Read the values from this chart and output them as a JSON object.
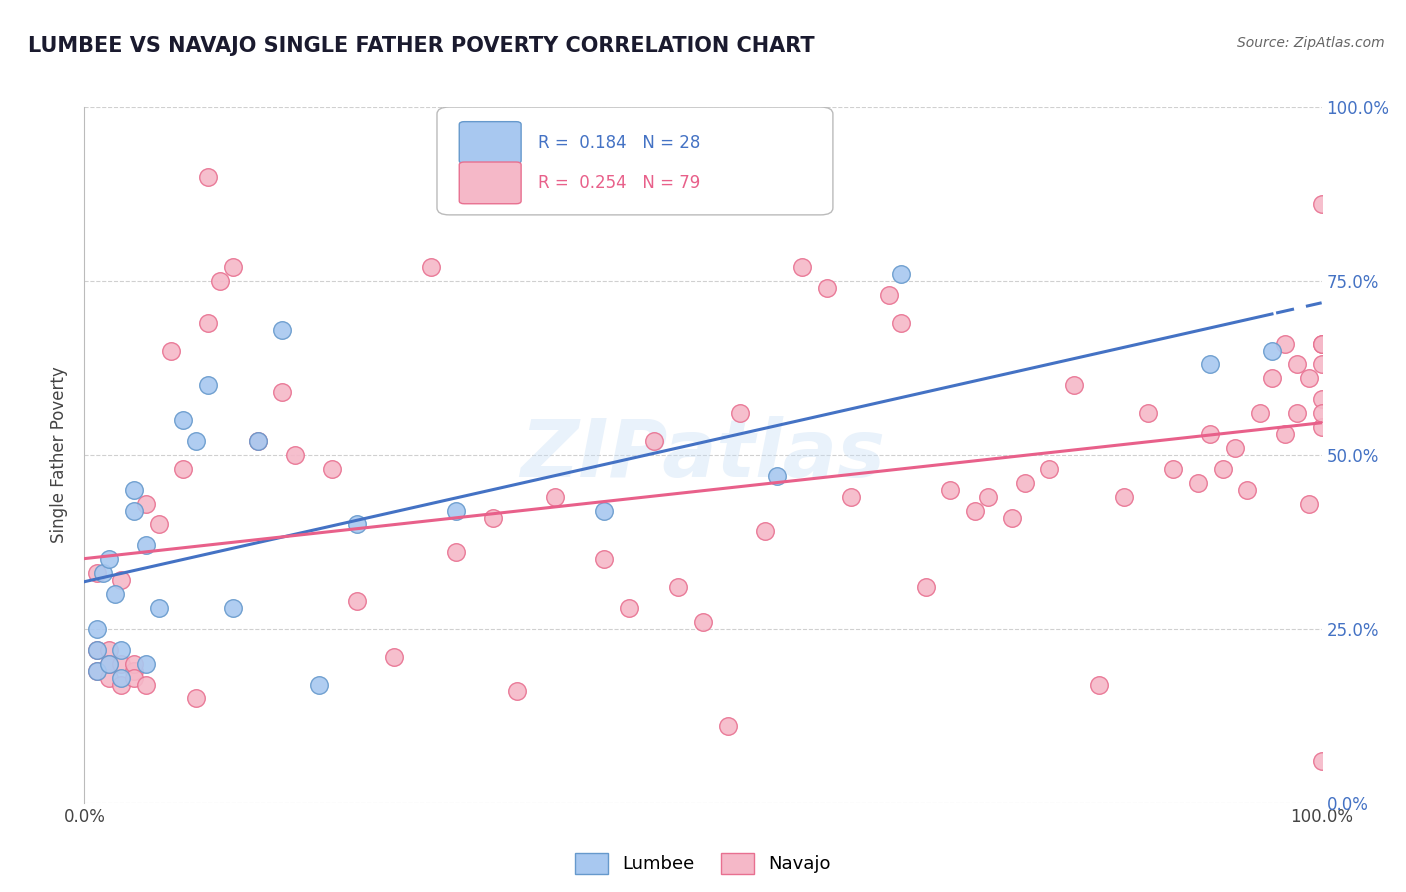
{
  "title": "LUMBEE VS NAVAJO SINGLE FATHER POVERTY CORRELATION CHART",
  "source_text": "Source: ZipAtlas.com",
  "ylabel": "Single Father Poverty",
  "xlim": [
    0,
    1
  ],
  "ylim": [
    0,
    1
  ],
  "y_tick_positions": [
    0.0,
    0.25,
    0.5,
    0.75,
    1.0
  ],
  "y_tick_labels": [
    "0.0%",
    "25.0%",
    "50.0%",
    "75.0%",
    "100.0%"
  ],
  "grid_color": "#d0d0d0",
  "background_color": "#ffffff",
  "watermark": "ZIPatlas",
  "lumbee_color": "#a8c8f0",
  "lumbee_edge_color": "#6699CC",
  "navajo_color": "#f5b8c8",
  "navajo_edge_color": "#E87090",
  "lumbee_R": 0.184,
  "lumbee_N": 28,
  "navajo_R": 0.254,
  "navajo_N": 79,
  "lumbee_line_color": "#4472C4",
  "navajo_line_color": "#E8608A",
  "lumbee_scatter_x": [
    0.01,
    0.01,
    0.01,
    0.015,
    0.02,
    0.02,
    0.025,
    0.03,
    0.03,
    0.04,
    0.04,
    0.05,
    0.05,
    0.06,
    0.08,
    0.09,
    0.1,
    0.12,
    0.14,
    0.16,
    0.19,
    0.22,
    0.3,
    0.42,
    0.56,
    0.66,
    0.91,
    0.96
  ],
  "lumbee_scatter_y": [
    0.19,
    0.22,
    0.25,
    0.33,
    0.35,
    0.2,
    0.3,
    0.18,
    0.22,
    0.42,
    0.45,
    0.2,
    0.37,
    0.28,
    0.55,
    0.52,
    0.6,
    0.28,
    0.52,
    0.68,
    0.17,
    0.4,
    0.42,
    0.42,
    0.47,
    0.76,
    0.63,
    0.65
  ],
  "navajo_scatter_x": [
    0.01,
    0.01,
    0.01,
    0.02,
    0.02,
    0.02,
    0.03,
    0.03,
    0.03,
    0.04,
    0.04,
    0.04,
    0.05,
    0.05,
    0.06,
    0.07,
    0.08,
    0.09,
    0.1,
    0.1,
    0.11,
    0.12,
    0.14,
    0.16,
    0.17,
    0.2,
    0.22,
    0.25,
    0.28,
    0.3,
    0.33,
    0.35,
    0.38,
    0.42,
    0.44,
    0.46,
    0.48,
    0.5,
    0.52,
    0.53,
    0.55,
    0.58,
    0.6,
    0.62,
    0.65,
    0.66,
    0.68,
    0.7,
    0.72,
    0.73,
    0.75,
    0.76,
    0.78,
    0.8,
    0.82,
    0.84,
    0.86,
    0.88,
    0.9,
    0.91,
    0.92,
    0.93,
    0.94,
    0.95,
    0.96,
    0.97,
    0.97,
    0.98,
    0.98,
    0.99,
    0.99,
    1.0,
    1.0,
    1.0,
    1.0,
    1.0,
    1.0,
    1.0,
    1.0
  ],
  "navajo_scatter_y": [
    0.19,
    0.22,
    0.33,
    0.18,
    0.22,
    0.2,
    0.17,
    0.2,
    0.32,
    0.19,
    0.2,
    0.18,
    0.17,
    0.43,
    0.4,
    0.65,
    0.48,
    0.15,
    0.9,
    0.69,
    0.75,
    0.77,
    0.52,
    0.59,
    0.5,
    0.48,
    0.29,
    0.21,
    0.77,
    0.36,
    0.41,
    0.16,
    0.44,
    0.35,
    0.28,
    0.52,
    0.31,
    0.26,
    0.11,
    0.56,
    0.39,
    0.77,
    0.74,
    0.44,
    0.73,
    0.69,
    0.31,
    0.45,
    0.42,
    0.44,
    0.41,
    0.46,
    0.48,
    0.6,
    0.17,
    0.44,
    0.56,
    0.48,
    0.46,
    0.53,
    0.48,
    0.51,
    0.45,
    0.56,
    0.61,
    0.66,
    0.53,
    0.63,
    0.56,
    0.61,
    0.43,
    0.06,
    0.66,
    0.66,
    0.63,
    0.58,
    0.54,
    0.56,
    0.86
  ]
}
